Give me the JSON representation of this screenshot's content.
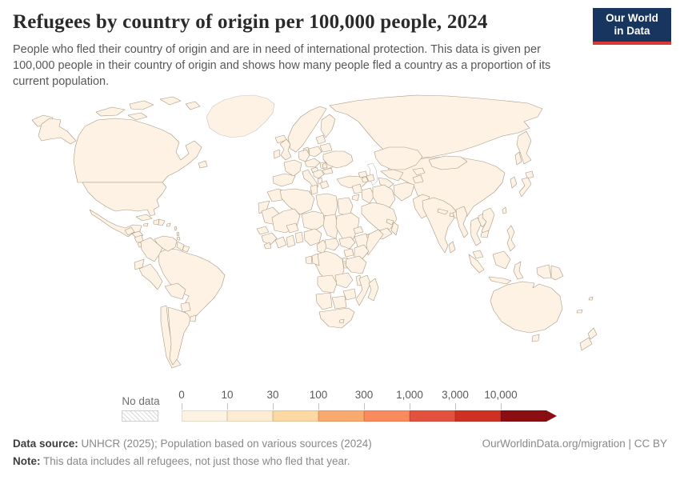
{
  "header": {
    "title": "Refugees by country of origin per 100,000 people, 2024",
    "subtitle": "People who fled their country of origin and are in need of international protection. This data is given per 100,000 people in their country of origin and shows how many people fled a country as a proportion of its current population.",
    "logo_line1": "Our World",
    "logo_line2": "in Data"
  },
  "legend": {
    "no_data_label": "No data",
    "tick_labels": [
      "0",
      "10",
      "30",
      "100",
      "300",
      "1,000",
      "3,000",
      "10,000"
    ],
    "bin_colors": [
      "#fdf3e3",
      "#fdecd2",
      "#fcd8a3",
      "#fbaa6e",
      "#f98a5b",
      "#e2523f",
      "#ce3023",
      "#8b0e12"
    ],
    "arrow_color": "#8b0e12"
  },
  "map": {
    "countries": [
      {
        "id": "greenland",
        "name": "Greenland",
        "color": "no-data"
      },
      {
        "id": "chukotka",
        "name": "Russia (Chukotka)",
        "color": "#f6cf9f"
      },
      {
        "id": "alaska",
        "name": "United States (Alaska)",
        "color": "#fbf1e3"
      },
      {
        "id": "canada",
        "name": "Canada",
        "color": "#fbf1e3"
      },
      {
        "id": "arctic1",
        "name": "Canadian Arctic Islands",
        "color": "#fbf1e3"
      },
      {
        "id": "arctic2",
        "name": "Canadian Arctic Islands",
        "color": "#fbf1e3"
      },
      {
        "id": "arctic3",
        "name": "Canadian Arctic Islands",
        "color": "#fbf1e3"
      },
      {
        "id": "arctic4",
        "name": "Canadian Arctic Islands",
        "color": "#fbf1e3"
      },
      {
        "id": "arctic5",
        "name": "Canadian Arctic Islands",
        "color": "#fbf1e3"
      },
      {
        "id": "newfoundland",
        "name": "Canada (Newfoundland)",
        "color": "#fbf1e3"
      },
      {
        "id": "usa",
        "name": "United States",
        "color": "#fbf1e3"
      },
      {
        "id": "mexico",
        "name": "Mexico",
        "color": "#fbe3c1"
      },
      {
        "id": "guatemala",
        "name": "Guatemala",
        "color": "#e8684a"
      },
      {
        "id": "honduras",
        "name": "Honduras",
        "color": "#ef8157"
      },
      {
        "id": "nicaragua",
        "name": "Nicaragua",
        "color": "#f29a6d"
      },
      {
        "id": "costa_rica",
        "name": "Costa Rica",
        "color": "#fdf2e4"
      },
      {
        "id": "panama",
        "name": "Panama",
        "color": "#fcf0e2"
      },
      {
        "id": "cuba",
        "name": "Cuba",
        "color": "#f6b67e"
      },
      {
        "id": "jamaica",
        "name": "Jamaica",
        "color": "#fbe0b9"
      },
      {
        "id": "haiti",
        "name": "Haiti",
        "color": "#cf3b2b"
      },
      {
        "id": "dominican",
        "name": "Dominican Republic",
        "color": "#fbf1e3"
      },
      {
        "id": "puerto_rico",
        "name": "Puerto Rico",
        "color": "#fdf2e4"
      },
      {
        "id": "antilles1",
        "name": "Lesser Antilles",
        "color": "#f6bc85"
      },
      {
        "id": "antilles2",
        "name": "Lesser Antilles",
        "color": "#f6bc85"
      },
      {
        "id": "trinidad",
        "name": "Trinidad and Tobago",
        "color": "#fbe0b9"
      },
      {
        "id": "venezuela",
        "name": "Venezuela",
        "color": "#e4543c"
      },
      {
        "id": "colombia",
        "name": "Colombia",
        "color": "#f29c6a"
      },
      {
        "id": "guyana",
        "name": "Guyana",
        "color": "#fbe0b9"
      },
      {
        "id": "suriname",
        "name": "Suriname",
        "color": "#f9d29e"
      },
      {
        "id": "ecuador",
        "name": "Ecuador",
        "color": "#f7c391"
      },
      {
        "id": "peru",
        "name": "Peru",
        "color": "#fbe3c1"
      },
      {
        "id": "brazil",
        "name": "Brazil",
        "color": "#fcf2e4"
      },
      {
        "id": "bolivia",
        "name": "Bolivia",
        "color": "#fdf3e6"
      },
      {
        "id": "paraguay",
        "name": "Paraguay",
        "color": "#fdf3e6"
      },
      {
        "id": "uruguay",
        "name": "Uruguay",
        "color": "#fcf0e2"
      },
      {
        "id": "chile",
        "name": "Chile",
        "color": "#fbe7cb"
      },
      {
        "id": "argentina",
        "name": "Argentina",
        "color": "#fdf3e6"
      },
      {
        "id": "iceland",
        "name": "Iceland",
        "color": "#fcf3e8"
      },
      {
        "id": "norway_sweden",
        "name": "Norway and Sweden",
        "color": "#fcf3e8"
      },
      {
        "id": "finland",
        "name": "Finland",
        "color": "#fcf1e4"
      },
      {
        "id": "denmark",
        "name": "Denmark",
        "color": "#fcf3e8"
      },
      {
        "id": "uk",
        "name": "United Kingdom",
        "color": "#fcf3e8"
      },
      {
        "id": "ireland",
        "name": "Ireland",
        "color": "#fcf3e8"
      },
      {
        "id": "france",
        "name": "France",
        "color": "#fcf3e8"
      },
      {
        "id": "spain",
        "name": "Spain",
        "color": "#fcf3e8"
      },
      {
        "id": "germany",
        "name": "Germany",
        "color": "#fcf3e8"
      },
      {
        "id": "poland",
        "name": "Poland",
        "color": "#fcf1e4"
      },
      {
        "id": "central_europe",
        "name": "Czechia-Hungary region",
        "color": "#fcf1e4"
      },
      {
        "id": "italy",
        "name": "Italy",
        "color": "#fdf1e0"
      },
      {
        "id": "sicily",
        "name": "Italy (Sicily)",
        "color": "#fdf1e0"
      },
      {
        "id": "croatia",
        "name": "Croatia",
        "color": "#fbdcb2"
      },
      {
        "id": "bosnia_serbia",
        "name": "Bosnia and Serbia",
        "color": "#ef8157"
      },
      {
        "id": "albania",
        "name": "Albania",
        "color": "#f4a274"
      },
      {
        "id": "greece",
        "name": "Greece",
        "color": "#fcf3e8"
      },
      {
        "id": "romania",
        "name": "Romania",
        "color": "#fceedd"
      },
      {
        "id": "bulgaria",
        "name": "Bulgaria",
        "color": "#fbe3c1"
      },
      {
        "id": "baltics",
        "name": "Baltic states",
        "color": "#fcf1e4"
      },
      {
        "id": "belarus",
        "name": "Belarus",
        "color": "#fcf1e4"
      },
      {
        "id": "ukraine",
        "name": "Ukraine",
        "color": "#8b0e12"
      },
      {
        "id": "moldova",
        "name": "Moldova",
        "color": "#f4a274"
      },
      {
        "id": "russia",
        "name": "Russia",
        "color": "#f6cf9f"
      },
      {
        "id": "kamchatka",
        "name": "Russia (Kamchatka)",
        "color": "#f6cf9f"
      },
      {
        "id": "sakhalin",
        "name": "Russia (Sakhalin)",
        "color": "#f6cf9f"
      },
      {
        "id": "turkey",
        "name": "Turkey",
        "color": "#fbdcae"
      },
      {
        "id": "syria",
        "name": "Syria",
        "color": "#8b0e12"
      },
      {
        "id": "jordan",
        "name": "Jordan",
        "color": "#fbe3c1"
      },
      {
        "id": "iraq",
        "name": "Iraq",
        "color": "#f0875c"
      },
      {
        "id": "iran",
        "name": "Iran",
        "color": "#f7c391"
      },
      {
        "id": "georgia",
        "name": "Georgia",
        "color": "#fbd8a6"
      },
      {
        "id": "armenia",
        "name": "Armenia",
        "color": "#ea6a4a"
      },
      {
        "id": "azerbaijan",
        "name": "Azerbaijan",
        "color": "#ec7450"
      },
      {
        "id": "saudi",
        "name": "Saudi Arabia",
        "color": "#fdf6ed"
      },
      {
        "id": "yemen",
        "name": "Yemen",
        "color": "#f4a97a"
      },
      {
        "id": "oman",
        "name": "Oman",
        "color": "#fceedd"
      },
      {
        "id": "uae",
        "name": "United Arab Emirates",
        "color": "#fcf0e2"
      },
      {
        "id": "kazakhstan",
        "name": "Kazakhstan",
        "color": "#fbdcae"
      },
      {
        "id": "uzbekistan",
        "name": "Uzbekistan",
        "color": "#fbd8a6"
      },
      {
        "id": "turkmenistan",
        "name": "Turkmenistan",
        "color": "#f9d29e"
      },
      {
        "id": "kyrgyzstan",
        "name": "Kyrgyzstan",
        "color": "#fbd8a6"
      },
      {
        "id": "tajikistan",
        "name": "Tajikistan",
        "color": "#f4ab76"
      },
      {
        "id": "afghanistan",
        "name": "Afghanistan",
        "color": "#8b0e12"
      },
      {
        "id": "pakistan",
        "name": "Pakistan",
        "color": "#fdf0e0"
      },
      {
        "id": "india",
        "name": "India",
        "color": "#fdf2e4"
      },
      {
        "id": "nepal",
        "name": "Nepal",
        "color": "#fbe0b9"
      },
      {
        "id": "bhutan",
        "name": "Bhutan",
        "color": "#fbe0b9"
      },
      {
        "id": "bangladesh",
        "name": "Bangladesh",
        "color": "#f9d29e"
      },
      {
        "id": "myanmar",
        "name": "Myanmar",
        "color": "#e6573d"
      },
      {
        "id": "sri_lanka",
        "name": "Sri Lanka",
        "color": "#f0875c"
      },
      {
        "id": "china",
        "name": "China",
        "color": "#fbe4c2"
      },
      {
        "id": "mongolia",
        "name": "Mongolia",
        "color": "#fcedd6"
      },
      {
        "id": "hokkaido",
        "name": "Japan (Hokkaido)",
        "color": "#fcf3e8"
      },
      {
        "id": "japan",
        "name": "Japan",
        "color": "#fcf3e8"
      },
      {
        "id": "korea",
        "name": "South Korea",
        "color": "#fcf3e8"
      },
      {
        "id": "taiwan",
        "name": "Taiwan",
        "color": "#fbe0b9"
      },
      {
        "id": "thailand",
        "name": "Thailand",
        "color": "#fdf0e0"
      },
      {
        "id": "laos",
        "name": "Laos",
        "color": "#fbdcae"
      },
      {
        "id": "vietnam",
        "name": "Vietnam",
        "color": "#fdf0e0"
      },
      {
        "id": "cambodia",
        "name": "Cambodia",
        "color": "#fbe0b9"
      },
      {
        "id": "malaysia",
        "name": "Malaysia",
        "color": "#fdf2e4"
      },
      {
        "id": "sumatra",
        "name": "Indonesia (Sumatra)",
        "color": "#fdf2e4"
      },
      {
        "id": "java",
        "name": "Indonesia (Java)",
        "color": "#fdf2e4"
      },
      {
        "id": "borneo",
        "name": "Indonesia (Borneo)",
        "color": "#fdf2e4"
      },
      {
        "id": "sulawesi",
        "name": "Indonesia (Sulawesi)",
        "color": "#fdf2e4"
      },
      {
        "id": "papua_id",
        "name": "Indonesia (Papua)",
        "color": "#fdf2e4"
      },
      {
        "id": "png",
        "name": "Papua New Guinea",
        "color": "#fbeedd"
      },
      {
        "id": "philippines",
        "name": "Philippines",
        "color": "#fdf2e4"
      },
      {
        "id": "morocco",
        "name": "Morocco",
        "color": "#fbd8a6"
      },
      {
        "id": "w_sahara",
        "name": "Western Sahara",
        "color": "#8b0e12"
      },
      {
        "id": "algeria",
        "name": "Algeria",
        "color": "#fdf0de"
      },
      {
        "id": "tunisia",
        "name": "Tunisia",
        "color": "#fbd8a6"
      },
      {
        "id": "libya",
        "name": "Libya",
        "color": "#fbd8a6"
      },
      {
        "id": "egypt",
        "name": "Egypt",
        "color": "#f9d29e"
      },
      {
        "id": "mauritania",
        "name": "Mauritania",
        "color": "#ee7a52"
      },
      {
        "id": "senegal",
        "name": "Senegal",
        "color": "#f0875c"
      },
      {
        "id": "mali",
        "name": "Mali",
        "color": "#e6573d"
      },
      {
        "id": "burkina",
        "name": "Burkina Faso",
        "color": "#e8684a"
      },
      {
        "id": "niger",
        "name": "Niger",
        "color": "#f9d29e"
      },
      {
        "id": "chad",
        "name": "Chad",
        "color": "#c93526"
      },
      {
        "id": "sudan",
        "name": "Sudan",
        "color": "#c93526"
      },
      {
        "id": "eritrea",
        "name": "Eritrea",
        "color": "#8b0e12"
      },
      {
        "id": "ethiopia",
        "name": "Ethiopia",
        "color": "#fbe0b9"
      },
      {
        "id": "djibouti",
        "name": "Djibouti",
        "color": "#f0875c"
      },
      {
        "id": "somalia",
        "name": "Somalia",
        "color": "#c93526"
      },
      {
        "id": "guinea",
        "name": "Guinea",
        "color": "#fbd8a6"
      },
      {
        "id": "sierra_leone",
        "name": "Sierra Leone",
        "color": "#f9d29e"
      },
      {
        "id": "ivory_coast",
        "name": "Cote d'Ivoire",
        "color": "#f0875c"
      },
      {
        "id": "ghana",
        "name": "Ghana",
        "color": "#fbd8a6"
      },
      {
        "id": "togo_benin",
        "name": "Togo and Benin",
        "color": "#f6bc85"
      },
      {
        "id": "nigeria",
        "name": "Nigeria",
        "color": "#f6bc85"
      },
      {
        "id": "cameroon",
        "name": "Cameroon",
        "color": "#f0875c"
      },
      {
        "id": "car",
        "name": "Central African Republic",
        "color": "#8b0e12"
      },
      {
        "id": "south_sudan",
        "name": "South Sudan",
        "color": "#8b0e12"
      },
      {
        "id": "uganda",
        "name": "Uganda",
        "color": "#fbd49e"
      },
      {
        "id": "kenya",
        "name": "Kenya",
        "color": "#fceedd"
      },
      {
        "id": "rwanda",
        "name": "Rwanda",
        "color": "#f0875c"
      },
      {
        "id": "burundi",
        "name": "Burundi",
        "color": "#cf3b2b"
      },
      {
        "id": "drc",
        "name": "Democratic Republic of Congo",
        "color": "#ef7750"
      },
      {
        "id": "congo",
        "name": "Congo",
        "color": "#f29a6d"
      },
      {
        "id": "gabon",
        "name": "Gabon",
        "color": "#fbd8a6"
      },
      {
        "id": "angola",
        "name": "Angola",
        "color": "#fbd8a6"
      },
      {
        "id": "zambia",
        "name": "Zambia",
        "color": "#fceedd"
      },
      {
        "id": "tanzania",
        "name": "Tanzania",
        "color": "#fdf2e4"
      },
      {
        "id": "malawi",
        "name": "Malawi",
        "color": "#fbd8a6"
      },
      {
        "id": "mozambique",
        "name": "Mozambique",
        "color": "#fcf0e2"
      },
      {
        "id": "zimbabwe",
        "name": "Zimbabwe",
        "color": "#f9cf9c"
      },
      {
        "id": "namibia",
        "name": "Namibia",
        "color": "#fbd8a6"
      },
      {
        "id": "botswana",
        "name": "Botswana",
        "color": "#fdf2e4"
      },
      {
        "id": "south_africa",
        "name": "South Africa",
        "color": "#fdf3e6"
      },
      {
        "id": "lesotho",
        "name": "Lesotho",
        "color": "#fbe0b9"
      },
      {
        "id": "madagascar",
        "name": "Madagascar",
        "color": "#fceedd"
      },
      {
        "id": "australia",
        "name": "Australia",
        "color": "#fdf2e4"
      },
      {
        "id": "tasmania",
        "name": "Australia (Tasmania)",
        "color": "#fdf2e4"
      },
      {
        "id": "nz_north",
        "name": "New Zealand (North Island)",
        "color": "#fcf3e8"
      },
      {
        "id": "nz_south",
        "name": "New Zealand (South Island)",
        "color": "#fcf3e8"
      },
      {
        "id": "fiji",
        "name": "Fiji",
        "color": "#fbe0b9"
      },
      {
        "id": "new_caledonia",
        "name": "New Caledonia",
        "color": "#fbe0b9"
      }
    ]
  },
  "footer": {
    "datasource_label": "Data source:",
    "datasource_text": " UNHCR (2025); Population based on various sources (2024)",
    "note_label": "Note:",
    "note_text": " This data includes all refugees, not just those who fled that year.",
    "link_text": "OurWorldinData.org/migration | CC BY"
  }
}
